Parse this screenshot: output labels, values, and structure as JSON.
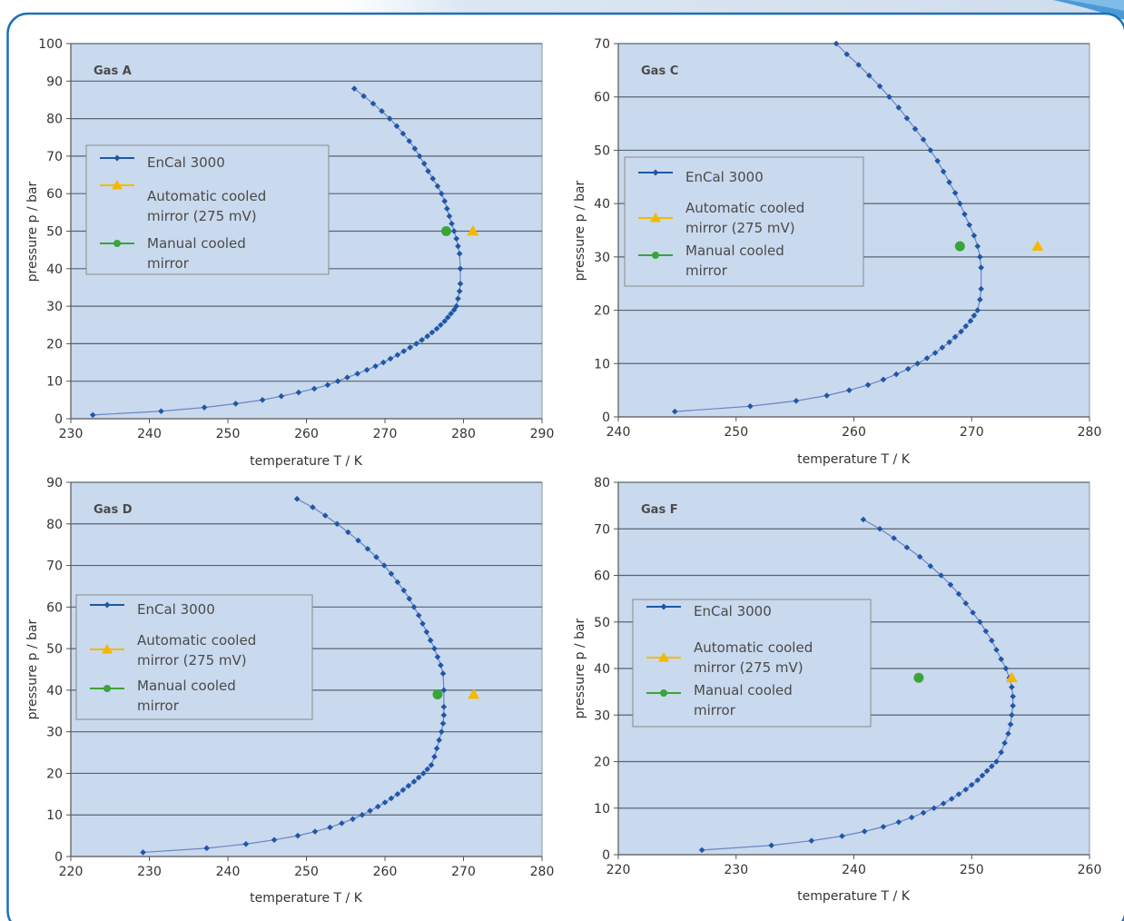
{
  "colors": {
    "frame": "#1f6fb5",
    "plot_bg": "#c9d9ee",
    "grid": "#5a6470",
    "encal": "#1f56a8",
    "automatic": "#f5b800",
    "manual": "#3aa43a"
  },
  "chart_data": [
    {
      "id": "a",
      "type": "scatter",
      "title": "Gas A",
      "xlabel": "temperature T / K",
      "ylabel": "pressure  p / bar",
      "xlim": [
        230,
        290
      ],
      "ylim": [
        0,
        100
      ],
      "xticks": [
        230,
        240,
        250,
        260,
        270,
        280,
        290
      ],
      "yticks": [
        0,
        10,
        20,
        30,
        40,
        50,
        60,
        70,
        80,
        90,
        100
      ],
      "legend": [
        "EnCal 3000",
        "Automatic cooled",
        "mirror (275 mV)",
        "Manual cooled",
        "mirror"
      ],
      "series": [
        {
          "name": "EnCal 3000",
          "marker": "diamond",
          "x": [
            232.8,
            241.5,
            247,
            251,
            254.4,
            256.8,
            259,
            261,
            262.7,
            264,
            265.2,
            266.5,
            267.7,
            268.8,
            269.8,
            270.7,
            271.6,
            272.4,
            273.2,
            274,
            274.7,
            275.4,
            276,
            276.6,
            277.1,
            277.6,
            278,
            278.4,
            278.8,
            279.1,
            279.3,
            279.5,
            279.6,
            279.6,
            279.5,
            279.3,
            279.1,
            278.8,
            278.5,
            278.2,
            277.9,
            277.6,
            277.2,
            276.7,
            276.1,
            275.5,
            275,
            274.4,
            273.8,
            273.1,
            272.3,
            271.5,
            270.6,
            269.6,
            268.5,
            267.3,
            266.1
          ],
          "y": [
            1,
            2,
            3,
            4,
            5,
            6,
            7,
            8,
            9,
            10,
            11,
            12,
            13,
            14,
            15,
            16,
            17,
            18,
            19,
            20,
            21,
            22,
            23,
            24,
            25,
            26,
            27,
            28,
            29,
            30,
            32,
            34,
            36,
            40,
            44,
            46,
            48,
            50,
            52,
            54,
            56,
            58,
            60,
            62,
            64,
            66,
            68,
            70,
            72,
            74,
            76,
            78,
            80,
            82,
            84,
            86,
            88
          ]
        },
        {
          "name": "Automatic cooled mirror (275 mV)",
          "marker": "triangle",
          "x": [
            281.2
          ],
          "y": [
            50
          ]
        },
        {
          "name": "Manual cooled mirror",
          "marker": "circle",
          "x": [
            277.8
          ],
          "y": [
            50
          ]
        }
      ]
    },
    {
      "id": "c",
      "type": "scatter",
      "title": "Gas C",
      "xlabel": "temperature T / K",
      "ylabel": "pressure  p / bar",
      "xlim": [
        240,
        280
      ],
      "ylim": [
        0,
        70
      ],
      "xticks": [
        240,
        250,
        260,
        270,
        280
      ],
      "yticks": [
        0,
        10,
        20,
        30,
        40,
        50,
        60,
        70
      ],
      "legend": [
        "EnCal 3000",
        "Automatic cooled",
        "mirror (275 mV)",
        "Manual cooled",
        "mirror"
      ],
      "series": [
        {
          "name": "EnCal 3000",
          "marker": "diamond",
          "x": [
            244.8,
            251.2,
            255.1,
            257.7,
            259.6,
            261.2,
            262.5,
            263.6,
            264.6,
            265.4,
            266.2,
            266.9,
            267.5,
            268.1,
            268.6,
            269.1,
            269.5,
            269.9,
            270.2,
            270.5,
            270.7,
            270.8,
            270.8,
            270.7,
            270.5,
            270.2,
            269.8,
            269.4,
            269,
            268.6,
            268.1,
            267.6,
            267.1,
            266.5,
            265.9,
            265.2,
            264.5,
            263.8,
            263,
            262.2,
            261.3,
            260.4,
            259.4,
            258.5
          ],
          "y": [
            1,
            2,
            3,
            4,
            5,
            6,
            7,
            8,
            9,
            10,
            11,
            12,
            13,
            14,
            15,
            16,
            17,
            18,
            19,
            20,
            22,
            24,
            28,
            30,
            32,
            34,
            36,
            38,
            40,
            42,
            44,
            46,
            48,
            50,
            52,
            54,
            56,
            58,
            60,
            62,
            64,
            66,
            68,
            70
          ]
        },
        {
          "name": "Automatic cooled mirror (275 mV)",
          "marker": "triangle",
          "x": [
            275.6
          ],
          "y": [
            32
          ]
        },
        {
          "name": "Manual cooled mirror",
          "marker": "circle",
          "x": [
            269
          ],
          "y": [
            32
          ]
        }
      ]
    },
    {
      "id": "d",
      "type": "scatter",
      "title": "Gas D",
      "xlabel": "temperature T / K",
      "ylabel": "pressure  p / bar",
      "xlim": [
        220,
        280
      ],
      "ylim": [
        0,
        90
      ],
      "xticks": [
        220,
        230,
        240,
        250,
        260,
        270,
        280
      ],
      "yticks": [
        0,
        10,
        20,
        30,
        40,
        50,
        60,
        70,
        80,
        90
      ],
      "legend": [
        "EnCal 3000",
        "Automatic cooled",
        "mirror (275 mV)",
        "Manual cooled",
        "mirror"
      ],
      "series": [
        {
          "name": "EnCal 3000",
          "marker": "diamond",
          "x": [
            229.2,
            237.3,
            242.3,
            245.9,
            248.9,
            251.1,
            253,
            254.5,
            255.9,
            257.1,
            258.1,
            259.1,
            260,
            260.8,
            261.6,
            262.3,
            263,
            263.7,
            264.3,
            264.9,
            265.4,
            265.9,
            266.3,
            266.6,
            266.9,
            267.2,
            267.4,
            267.5,
            267.5,
            267.5,
            267.4,
            267.1,
            266.7,
            266.3,
            265.8,
            265.3,
            264.8,
            264.3,
            263.7,
            263.1,
            262.4,
            261.6,
            260.8,
            259.9,
            258.9,
            257.8,
            256.6,
            255.3,
            253.9,
            252.4,
            250.8,
            248.8
          ],
          "y": [
            1,
            2,
            3,
            4,
            5,
            6,
            7,
            8,
            9,
            10,
            11,
            12,
            13,
            14,
            15,
            16,
            17,
            18,
            19,
            20,
            21,
            22,
            24,
            26,
            28,
            30,
            32,
            34,
            36,
            40,
            44,
            46,
            48,
            50,
            52,
            54,
            56,
            58,
            60,
            62,
            64,
            66,
            68,
            70,
            72,
            74,
            76,
            78,
            80,
            82,
            84,
            86
          ]
        },
        {
          "name": "Automatic cooled mirror (275 mV)",
          "marker": "triangle",
          "x": [
            271.3
          ],
          "y": [
            39
          ]
        },
        {
          "name": "Manual cooled mirror",
          "marker": "circle",
          "x": [
            266.7
          ],
          "y": [
            39
          ]
        }
      ]
    },
    {
      "id": "f",
      "type": "scatter",
      "title": "Gas F",
      "xlabel": "temperature T / K",
      "ylabel": "pressure  p / bar",
      "xlim": [
        220,
        260
      ],
      "ylim": [
        0,
        80
      ],
      "xticks": [
        220,
        230,
        240,
        250,
        260
      ],
      "yticks": [
        0,
        10,
        20,
        30,
        40,
        50,
        60,
        70,
        80
      ],
      "legend": [
        "EnCal 3000",
        "Automatic cooled",
        "mirror (275 mV)",
        "Manual cooled",
        "mirror"
      ],
      "series": [
        {
          "name": "EnCal 3000",
          "marker": "diamond",
          "x": [
            227.1,
            233,
            236.4,
            239,
            240.9,
            242.5,
            243.8,
            244.9,
            245.9,
            246.8,
            247.6,
            248.3,
            248.9,
            249.5,
            250,
            250.5,
            250.9,
            251.3,
            251.7,
            252.1,
            252.5,
            252.8,
            253.1,
            253.3,
            253.4,
            253.5,
            253.5,
            253.4,
            253.2,
            252.9,
            252.5,
            252.1,
            251.7,
            251.2,
            250.7,
            250.1,
            249.5,
            248.9,
            248.2,
            247.4,
            246.5,
            245.6,
            244.5,
            243.4,
            242.2,
            240.8
          ],
          "y": [
            1,
            2,
            3,
            4,
            5,
            6,
            7,
            8,
            9,
            10,
            11,
            12,
            13,
            14,
            15,
            16,
            17,
            18,
            19,
            20,
            22,
            24,
            26,
            28,
            30,
            32,
            34,
            36,
            38,
            40,
            42,
            44,
            46,
            48,
            50,
            52,
            54,
            56,
            58,
            60,
            62,
            64,
            66,
            68,
            70,
            72
          ]
        },
        {
          "name": "Automatic cooled mirror (275 mV)",
          "marker": "triangle",
          "x": [
            253.4
          ],
          "y": [
            38
          ]
        },
        {
          "name": "Manual cooled mirror",
          "marker": "circle",
          "x": [
            245.5
          ],
          "y": [
            38
          ]
        }
      ]
    }
  ]
}
